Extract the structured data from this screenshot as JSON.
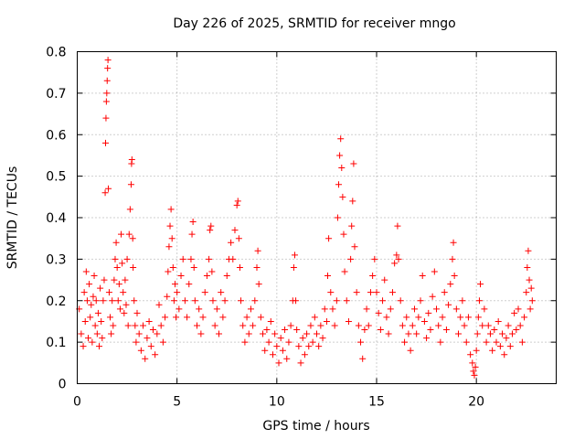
{
  "chart_data": {
    "type": "scatter",
    "title": "Day 226 of 2025, SRMTID for receiver mngo",
    "xlabel": "GPS time / hours",
    "ylabel": "SRMTID / TECUs",
    "xlim": [
      0,
      24
    ],
    "ylim": [
      0,
      0.8
    ],
    "xticks": [
      0,
      5,
      10,
      15,
      20
    ],
    "xtick_labels": [
      "0",
      "5",
      "10",
      "15",
      "20"
    ],
    "yticks": [
      0,
      0.1,
      0.2,
      0.3,
      0.4,
      0.5,
      0.6,
      0.7,
      0.8
    ],
    "ytick_labels": [
      "0",
      "0.1",
      "0.2",
      "0.3",
      "0.4",
      "0.5",
      "0.6",
      "0.7",
      "0.8"
    ],
    "grid": true,
    "marker": "+",
    "color": "#ff0000",
    "series": [
      {
        "name": "SRMTID",
        "points": [
          [
            0.1,
            0.18
          ],
          [
            0.2,
            0.12
          ],
          [
            0.3,
            0.09
          ],
          [
            0.35,
            0.22
          ],
          [
            0.4,
            0.15
          ],
          [
            0.45,
            0.27
          ],
          [
            0.5,
            0.2
          ],
          [
            0.55,
            0.11
          ],
          [
            0.6,
            0.24
          ],
          [
            0.65,
            0.16
          ],
          [
            0.7,
            0.19
          ],
          [
            0.75,
            0.1
          ],
          [
            0.8,
            0.21
          ],
          [
            0.85,
            0.26
          ],
          [
            0.9,
            0.14
          ],
          [
            0.95,
            0.2
          ],
          [
            1.0,
            0.12
          ],
          [
            1.05,
            0.17
          ],
          [
            1.1,
            0.09
          ],
          [
            1.15,
            0.23
          ],
          [
            1.2,
            0.15
          ],
          [
            1.25,
            0.11
          ],
          [
            1.3,
            0.2
          ],
          [
            1.35,
            0.25
          ],
          [
            1.4,
            0.46
          ],
          [
            1.42,
            0.58
          ],
          [
            1.44,
            0.64
          ],
          [
            1.46,
            0.68
          ],
          [
            1.48,
            0.7
          ],
          [
            1.5,
            0.73
          ],
          [
            1.52,
            0.76
          ],
          [
            1.54,
            0.78
          ],
          [
            1.56,
            0.47
          ],
          [
            1.6,
            0.22
          ],
          [
            1.65,
            0.16
          ],
          [
            1.7,
            0.12
          ],
          [
            1.75,
            0.2
          ],
          [
            1.8,
            0.14
          ],
          [
            1.85,
            0.25
          ],
          [
            1.9,
            0.3
          ],
          [
            1.95,
            0.34
          ],
          [
            2.0,
            0.28
          ],
          [
            2.05,
            0.2
          ],
          [
            2.1,
            0.24
          ],
          [
            2.15,
            0.18
          ],
          [
            2.2,
            0.36
          ],
          [
            2.25,
            0.29
          ],
          [
            2.3,
            0.22
          ],
          [
            2.35,
            0.17
          ],
          [
            2.4,
            0.25
          ],
          [
            2.45,
            0.19
          ],
          [
            2.5,
            0.3
          ],
          [
            2.55,
            0.14
          ],
          [
            2.6,
            0.36
          ],
          [
            2.65,
            0.42
          ],
          [
            2.7,
            0.48
          ],
          [
            2.72,
            0.53
          ],
          [
            2.74,
            0.54
          ],
          [
            2.78,
            0.35
          ],
          [
            2.8,
            0.28
          ],
          [
            2.85,
            0.2
          ],
          [
            2.9,
            0.14
          ],
          [
            2.95,
            0.1
          ],
          [
            3.0,
            0.17
          ],
          [
            3.1,
            0.12
          ],
          [
            3.2,
            0.08
          ],
          [
            3.3,
            0.14
          ],
          [
            3.4,
            0.06
          ],
          [
            3.5,
            0.11
          ],
          [
            3.6,
            0.15
          ],
          [
            3.7,
            0.09
          ],
          [
            3.8,
            0.13
          ],
          [
            3.9,
            0.07
          ],
          [
            4.0,
            0.12
          ],
          [
            4.1,
            0.19
          ],
          [
            4.2,
            0.14
          ],
          [
            4.3,
            0.1
          ],
          [
            4.4,
            0.16
          ],
          [
            4.5,
            0.21
          ],
          [
            4.55,
            0.27
          ],
          [
            4.6,
            0.33
          ],
          [
            4.65,
            0.38
          ],
          [
            4.7,
            0.42
          ],
          [
            4.75,
            0.35
          ],
          [
            4.8,
            0.28
          ],
          [
            4.85,
            0.2
          ],
          [
            4.9,
            0.24
          ],
          [
            4.95,
            0.16
          ],
          [
            5.0,
            0.22
          ],
          [
            5.1,
            0.18
          ],
          [
            5.2,
            0.26
          ],
          [
            5.3,
            0.3
          ],
          [
            5.4,
            0.2
          ],
          [
            5.5,
            0.16
          ],
          [
            5.6,
            0.24
          ],
          [
            5.7,
            0.3
          ],
          [
            5.75,
            0.36
          ],
          [
            5.8,
            0.39
          ],
          [
            5.85,
            0.28
          ],
          [
            5.9,
            0.2
          ],
          [
            6.0,
            0.14
          ],
          [
            6.1,
            0.18
          ],
          [
            6.2,
            0.12
          ],
          [
            6.3,
            0.16
          ],
          [
            6.4,
            0.22
          ],
          [
            6.5,
            0.26
          ],
          [
            6.6,
            0.3
          ],
          [
            6.65,
            0.37
          ],
          [
            6.7,
            0.38
          ],
          [
            6.75,
            0.27
          ],
          [
            6.8,
            0.2
          ],
          [
            6.9,
            0.14
          ],
          [
            7.0,
            0.18
          ],
          [
            7.1,
            0.12
          ],
          [
            7.2,
            0.22
          ],
          [
            7.3,
            0.16
          ],
          [
            7.4,
            0.2
          ],
          [
            7.5,
            0.26
          ],
          [
            7.6,
            0.3
          ],
          [
            7.7,
            0.34
          ],
          [
            7.8,
            0.3
          ],
          [
            7.9,
            0.37
          ],
          [
            8.0,
            0.43
          ],
          [
            8.05,
            0.44
          ],
          [
            8.1,
            0.35
          ],
          [
            8.15,
            0.28
          ],
          [
            8.2,
            0.2
          ],
          [
            8.3,
            0.14
          ],
          [
            8.4,
            0.1
          ],
          [
            8.5,
            0.16
          ],
          [
            8.6,
            0.12
          ],
          [
            8.7,
            0.18
          ],
          [
            8.8,
            0.14
          ],
          [
            8.9,
            0.2
          ],
          [
            9.0,
            0.28
          ],
          [
            9.05,
            0.32
          ],
          [
            9.1,
            0.24
          ],
          [
            9.2,
            0.16
          ],
          [
            9.3,
            0.12
          ],
          [
            9.4,
            0.08
          ],
          [
            9.5,
            0.13
          ],
          [
            9.6,
            0.1
          ],
          [
            9.7,
            0.15
          ],
          [
            9.8,
            0.07
          ],
          [
            9.9,
            0.12
          ],
          [
            10.0,
            0.09
          ],
          [
            10.1,
            0.05
          ],
          [
            10.2,
            0.11
          ],
          [
            10.3,
            0.08
          ],
          [
            10.4,
            0.13
          ],
          [
            10.5,
            0.06
          ],
          [
            10.6,
            0.1
          ],
          [
            10.7,
            0.14
          ],
          [
            10.8,
            0.2
          ],
          [
            10.85,
            0.28
          ],
          [
            10.9,
            0.31
          ],
          [
            10.95,
            0.2
          ],
          [
            11.0,
            0.13
          ],
          [
            11.1,
            0.09
          ],
          [
            11.2,
            0.05
          ],
          [
            11.3,
            0.11
          ],
          [
            11.4,
            0.07
          ],
          [
            11.5,
            0.12
          ],
          [
            11.6,
            0.09
          ],
          [
            11.7,
            0.14
          ],
          [
            11.8,
            0.1
          ],
          [
            11.9,
            0.16
          ],
          [
            12.0,
            0.12
          ],
          [
            12.1,
            0.09
          ],
          [
            12.2,
            0.14
          ],
          [
            12.3,
            0.11
          ],
          [
            12.4,
            0.18
          ],
          [
            12.5,
            0.15
          ],
          [
            12.55,
            0.26
          ],
          [
            12.6,
            0.35
          ],
          [
            12.7,
            0.22
          ],
          [
            12.8,
            0.18
          ],
          [
            12.9,
            0.14
          ],
          [
            13.0,
            0.2
          ],
          [
            13.05,
            0.4
          ],
          [
            13.1,
            0.48
          ],
          [
            13.15,
            0.55
          ],
          [
            13.2,
            0.59
          ],
          [
            13.25,
            0.52
          ],
          [
            13.3,
            0.45
          ],
          [
            13.35,
            0.36
          ],
          [
            13.4,
            0.27
          ],
          [
            13.5,
            0.2
          ],
          [
            13.6,
            0.15
          ],
          [
            13.7,
            0.3
          ],
          [
            13.75,
            0.38
          ],
          [
            13.8,
            0.44
          ],
          [
            13.85,
            0.53
          ],
          [
            13.9,
            0.33
          ],
          [
            14.0,
            0.22
          ],
          [
            14.1,
            0.14
          ],
          [
            14.2,
            0.1
          ],
          [
            14.3,
            0.06
          ],
          [
            14.4,
            0.13
          ],
          [
            14.5,
            0.18
          ],
          [
            14.6,
            0.14
          ],
          [
            14.7,
            0.22
          ],
          [
            14.8,
            0.26
          ],
          [
            14.9,
            0.3
          ],
          [
            15.0,
            0.22
          ],
          [
            15.1,
            0.17
          ],
          [
            15.2,
            0.13
          ],
          [
            15.3,
            0.2
          ],
          [
            15.4,
            0.25
          ],
          [
            15.5,
            0.16
          ],
          [
            15.6,
            0.12
          ],
          [
            15.7,
            0.18
          ],
          [
            15.8,
            0.22
          ],
          [
            15.9,
            0.29
          ],
          [
            16.0,
            0.31
          ],
          [
            16.05,
            0.38
          ],
          [
            16.1,
            0.3
          ],
          [
            16.2,
            0.2
          ],
          [
            16.3,
            0.14
          ],
          [
            16.4,
            0.1
          ],
          [
            16.5,
            0.16
          ],
          [
            16.6,
            0.12
          ],
          [
            16.7,
            0.08
          ],
          [
            16.8,
            0.14
          ],
          [
            16.9,
            0.18
          ],
          [
            17.0,
            0.12
          ],
          [
            17.1,
            0.16
          ],
          [
            17.2,
            0.2
          ],
          [
            17.3,
            0.26
          ],
          [
            17.4,
            0.15
          ],
          [
            17.5,
            0.11
          ],
          [
            17.6,
            0.17
          ],
          [
            17.7,
            0.13
          ],
          [
            17.8,
            0.21
          ],
          [
            17.9,
            0.27
          ],
          [
            18.0,
            0.18
          ],
          [
            18.1,
            0.14
          ],
          [
            18.2,
            0.1
          ],
          [
            18.3,
            0.16
          ],
          [
            18.4,
            0.22
          ],
          [
            18.5,
            0.13
          ],
          [
            18.6,
            0.19
          ],
          [
            18.7,
            0.24
          ],
          [
            18.8,
            0.3
          ],
          [
            18.85,
            0.34
          ],
          [
            18.9,
            0.26
          ],
          [
            19.0,
            0.18
          ],
          [
            19.1,
            0.12
          ],
          [
            19.2,
            0.16
          ],
          [
            19.3,
            0.2
          ],
          [
            19.4,
            0.14
          ],
          [
            19.5,
            0.1
          ],
          [
            19.6,
            0.16
          ],
          [
            19.7,
            0.07
          ],
          [
            19.8,
            0.05
          ],
          [
            19.85,
            0.03
          ],
          [
            19.9,
            0.02
          ],
          [
            19.95,
            0.04
          ],
          [
            20.0,
            0.08
          ],
          [
            20.05,
            0.12
          ],
          [
            20.1,
            0.16
          ],
          [
            20.15,
            0.2
          ],
          [
            20.2,
            0.24
          ],
          [
            20.3,
            0.14
          ],
          [
            20.4,
            0.18
          ],
          [
            20.5,
            0.1
          ],
          [
            20.6,
            0.14
          ],
          [
            20.7,
            0.12
          ],
          [
            20.8,
            0.08
          ],
          [
            20.9,
            0.13
          ],
          [
            21.0,
            0.1
          ],
          [
            21.1,
            0.15
          ],
          [
            21.2,
            0.09
          ],
          [
            21.3,
            0.12
          ],
          [
            21.4,
            0.07
          ],
          [
            21.5,
            0.11
          ],
          [
            21.6,
            0.14
          ],
          [
            21.7,
            0.09
          ],
          [
            21.8,
            0.12
          ],
          [
            21.9,
            0.17
          ],
          [
            22.0,
            0.13
          ],
          [
            22.1,
            0.18
          ],
          [
            22.2,
            0.14
          ],
          [
            22.3,
            0.1
          ],
          [
            22.4,
            0.16
          ],
          [
            22.5,
            0.22
          ],
          [
            22.55,
            0.28
          ],
          [
            22.6,
            0.32
          ],
          [
            22.65,
            0.25
          ],
          [
            22.7,
            0.18
          ],
          [
            22.75,
            0.23
          ],
          [
            22.8,
            0.2
          ]
        ]
      }
    ]
  }
}
